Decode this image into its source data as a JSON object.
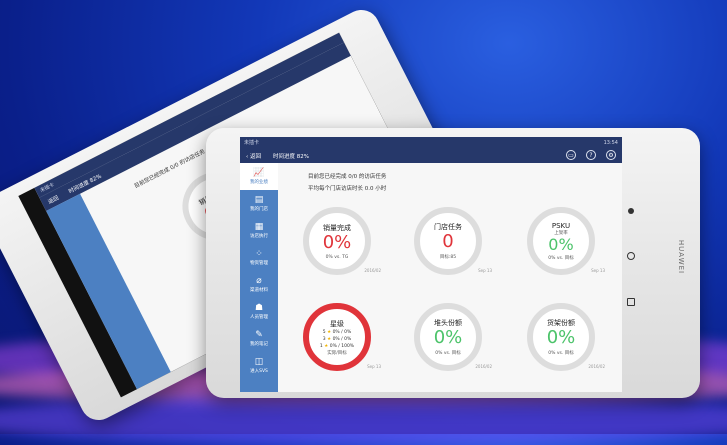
{
  "device": {
    "brand": "HUAWEI"
  },
  "status": {
    "carrier": "未插卡",
    "time": "13:54"
  },
  "nav": {
    "back": "返回",
    "progress": "时间进度 82%"
  },
  "icons": [
    "message-icon",
    "help-icon",
    "settings-icon"
  ],
  "sidebar": {
    "items": [
      {
        "label": "我的业绩",
        "icon": "chart-icon"
      },
      {
        "label": "我的门店",
        "icon": "store-icon"
      },
      {
        "label": "访店执行",
        "icon": "clipboard-icon"
      },
      {
        "label": "物资管理",
        "icon": "grid-icon"
      },
      {
        "label": "渠道材料",
        "icon": "paperclip-icon"
      },
      {
        "label": "人员管理",
        "icon": "people-icon"
      },
      {
        "label": "我的笔记",
        "icon": "note-icon"
      },
      {
        "label": "进入SVS",
        "icon": "enter-icon"
      }
    ]
  },
  "summary": {
    "line1": "目前您已经完成 0/0 的访店任务",
    "line2": "平均每个门店访店时长 0.0 小时"
  },
  "cards": [
    {
      "title": "销量完成",
      "value": "0%",
      "compare": "0% vs. TG",
      "date": "2016/02",
      "color": "red"
    },
    {
      "title": "门店任务",
      "value": "0",
      "compare": "目标:85",
      "date": "Sep 13",
      "color": "red"
    },
    {
      "title": "PSKU",
      "subtitle": "上架率",
      "value": "0%",
      "compare": "0% vs. 目标",
      "date": "Sep 13",
      "color": "green"
    },
    {
      "title": "星级",
      "stars": [
        {
          "n": "5",
          "v": "0% / 0%"
        },
        {
          "n": "3",
          "v": "0% / 0%"
        },
        {
          "n": "1",
          "v": "0% / 100%"
        }
      ],
      "compare": "实际/目标",
      "date": "Sep 13"
    },
    {
      "title": "堆头份额",
      "value": "0%",
      "compare": "0% vs. 目标",
      "date": "2016/02",
      "color": "green"
    },
    {
      "title": "货架份额",
      "value": "0%",
      "compare": "0% vs. 目标",
      "date": "2016/02",
      "color": "green"
    }
  ],
  "colors": {
    "header": "#26386a",
    "sidebar": "#4c80c2",
    "red": "#e0343a",
    "green": "#4cc36a"
  }
}
